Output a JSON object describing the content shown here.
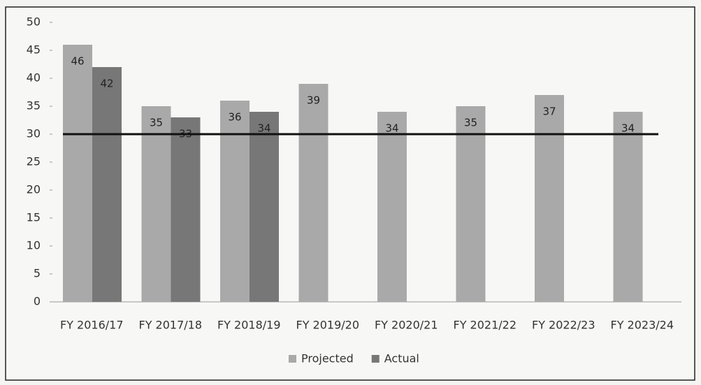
{
  "chart_data": {
    "type": "bar",
    "categories": [
      "FY 2016/17",
      "FY 2017/18",
      "FY 2018/19",
      "FY 2019/20",
      "FY 2020/21",
      "FY 2021/22",
      "FY 2022/23",
      "FY 2023/24"
    ],
    "series": [
      {
        "name": "Projected",
        "color": "#a9a9a9",
        "values": [
          46,
          35,
          36,
          39,
          34,
          35,
          37,
          34
        ]
      },
      {
        "name": "Actual",
        "color": "#777777",
        "values": [
          42,
          33,
          34,
          null,
          null,
          null,
          null,
          null
        ]
      }
    ],
    "reference_line": 30,
    "ylim": [
      0,
      50
    ],
    "yticks": [
      0,
      5,
      10,
      15,
      20,
      25,
      30,
      35,
      40,
      45,
      50
    ],
    "legend": "bottom"
  }
}
